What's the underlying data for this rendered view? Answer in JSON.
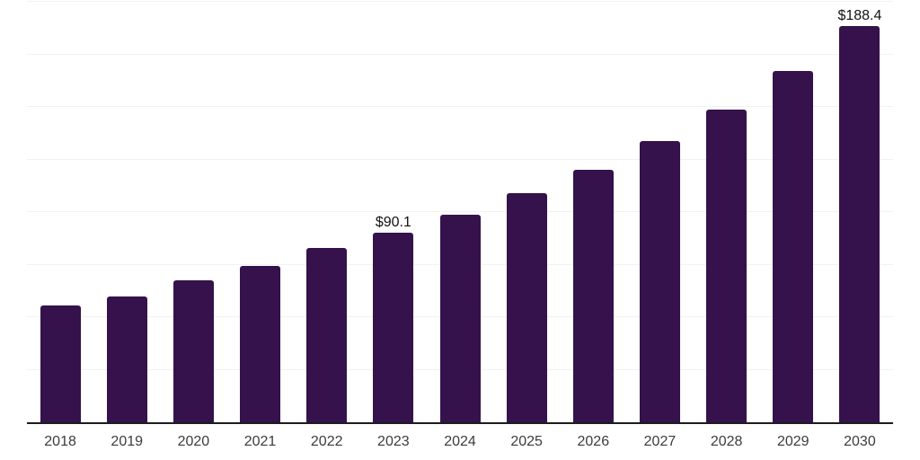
{
  "chart_data": {
    "type": "bar",
    "title": "",
    "xlabel": "",
    "ylabel": "",
    "categories": [
      "2018",
      "2019",
      "2020",
      "2021",
      "2022",
      "2023",
      "2024",
      "2025",
      "2026",
      "2027",
      "2028",
      "2029",
      "2030"
    ],
    "values": [
      55.4,
      59.9,
      67.7,
      74.4,
      82.7,
      90.1,
      98.7,
      109.1,
      120.2,
      133.7,
      148.7,
      167.0,
      188.4
    ],
    "data_labels": [
      "",
      "",
      "",
      "",
      "",
      "$90.1",
      "",
      "",
      "",
      "",
      "",
      "",
      "$188.4"
    ],
    "ylim": [
      0,
      200
    ],
    "gridline_step": 25,
    "grid": "horizontal-light",
    "legend_position": "none",
    "colors": {
      "bar": "#35124b",
      "axis_line": "#1d1d1d",
      "gridline": "#f2f2f2",
      "tick_label": "#3c3c3c",
      "value_label": "#121212",
      "background": "#ffffff"
    }
  }
}
